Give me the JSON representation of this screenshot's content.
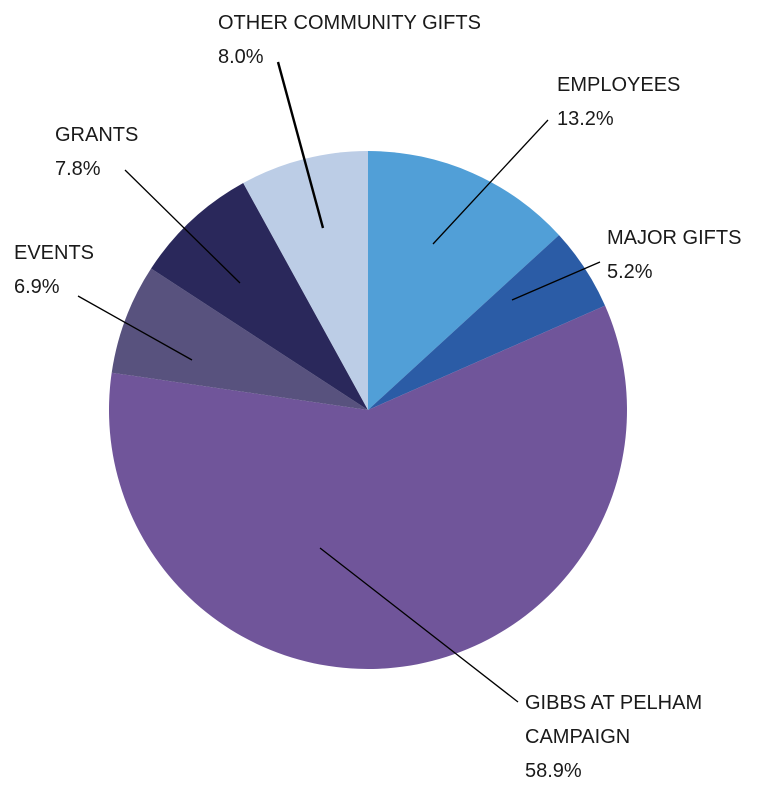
{
  "chart_data": {
    "type": "pie",
    "categories": [
      "EMPLOYEES",
      "MAJOR GIFTS",
      "GIBBS AT PELHAM CAMPAIGN",
      "EVENTS",
      "GRANTS",
      "OTHER COMMUNITY GIFTS"
    ],
    "values": [
      13.2,
      5.2,
      58.9,
      6.9,
      7.8,
      8.0
    ],
    "value_labels": [
      "13.2%",
      "5.2%",
      "58.9%",
      "6.9%",
      "7.8%",
      "8.0%"
    ],
    "colors": [
      "#519fd7",
      "#2b5ca6",
      "#70559a",
      "#58527e",
      "#2a285b",
      "#bccde6"
    ]
  }
}
